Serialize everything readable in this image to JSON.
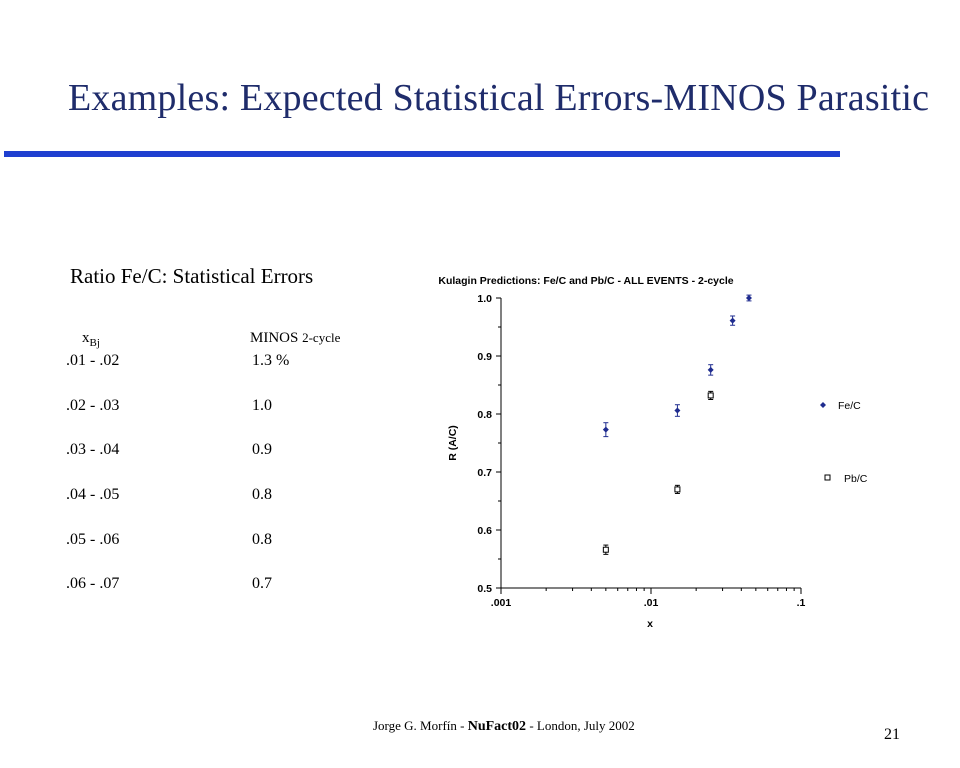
{
  "slide": {
    "title": "Examples: Expected Statistical Errors-MINOS Parasitic",
    "page_number": "21",
    "footer": {
      "author": "Jorge G. Morfín - ",
      "conference": "NuFact02",
      "rest": " - London, July 2002"
    }
  },
  "table": {
    "heading": "Ratio Fe/C: Statistical Errors",
    "col1_var": "x",
    "col1_sub": "Bj",
    "col2_main": "MINOS ",
    "col2_small": "2-cycle",
    "rows": [
      {
        "range": ".01 - .02",
        "value": "1.3 %"
      },
      {
        "range": ".02 - .03",
        "value": "1.0"
      },
      {
        "range": ".03 - .04",
        "value": "0.9"
      },
      {
        "range": ".04 - .05",
        "value": "0.8"
      },
      {
        "range": ".05 - .06",
        "value": "0.8"
      },
      {
        "range": ".06 - .07",
        "value": "0.7"
      }
    ]
  },
  "chart_data": {
    "type": "scatter",
    "title": "Kulagin Predictions: Fe/C and Pb/C - ALL EVENTS - 2-cycle",
    "xlabel": "x",
    "ylabel": "R (A/C)",
    "xscale": "log",
    "xlim": [
      0.001,
      0.1
    ],
    "ylim": [
      0.5,
      1.0
    ],
    "x_ticks": [
      ".001",
      ".01",
      ".1"
    ],
    "y_ticks": [
      "0.5",
      "0.6",
      "0.7",
      "0.8",
      "0.9",
      "1.0"
    ],
    "legend_position": "right",
    "grid": false,
    "series": [
      {
        "name": "Fe/C",
        "marker": "filled-diamond",
        "color": "#1f2c8f",
        "x": [
          0.005,
          0.015,
          0.025,
          0.035,
          0.045
        ],
        "y": [
          0.773,
          0.806,
          0.876,
          0.961,
          1.0
        ],
        "err": [
          0.012,
          0.01,
          0.009,
          0.008,
          0.005
        ]
      },
      {
        "name": "Pb/C",
        "marker": "open-square",
        "color": "#000000",
        "x": [
          0.005,
          0.015,
          0.025
        ],
        "y": [
          0.566,
          0.67,
          0.832
        ],
        "err": [
          0.008,
          0.007,
          0.007
        ]
      }
    ]
  }
}
